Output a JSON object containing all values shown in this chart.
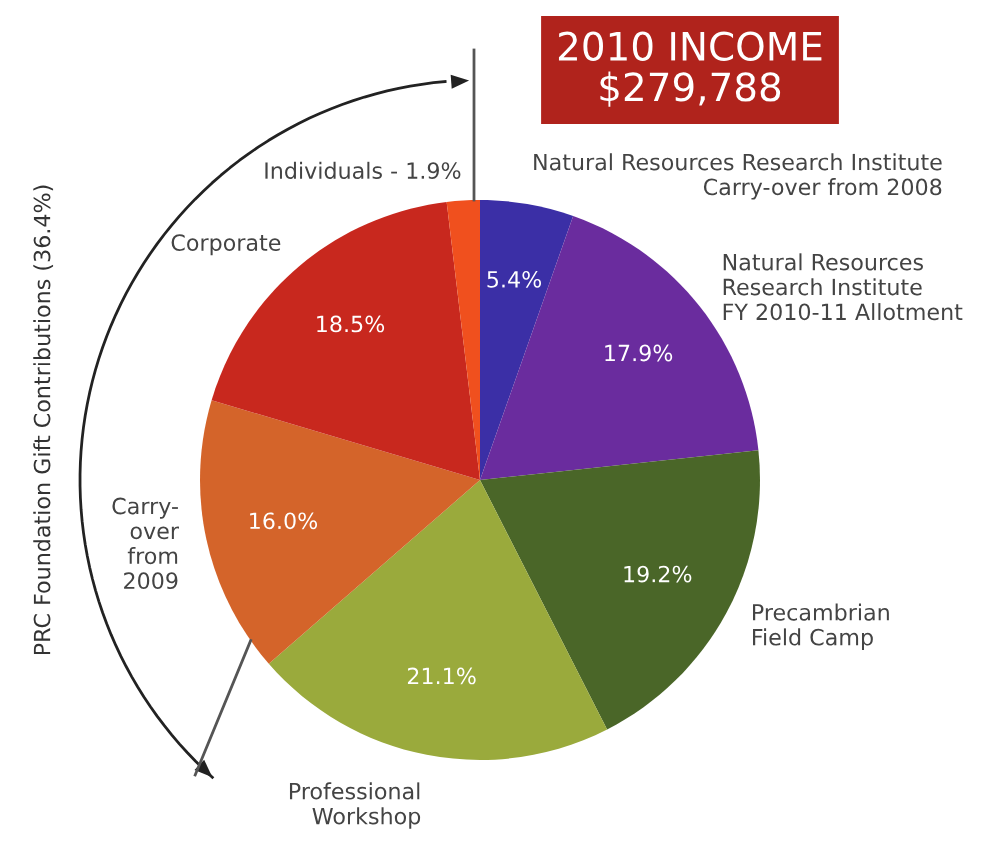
{
  "chart_data": {
    "type": "pie",
    "title": "2010 INCOME\n$279,788",
    "categories": [
      "Natural Resources Research Institute\nCarry-over from 2008",
      "Natural Resources\nResearch Institute\nFY 2010-11 Allotment",
      "Precambrian\nField Camp",
      "Professional\nWorkshop",
      "Carry-\nover\nfrom\n2009",
      "Corporate",
      "Individuals - 1.9%"
    ],
    "values": [
      5.4,
      17.9,
      19.2,
      21.1,
      16.0,
      18.5,
      1.9
    ],
    "colors": [
      "#3b2fa6",
      "#6a2c9e",
      "#4a6628",
      "#9aaa3c",
      "#d4642a",
      "#c8281e",
      "#f0501e"
    ],
    "value_labels": [
      "5.4%",
      "17.9%",
      "19.2%",
      "21.1%",
      "16.0%",
      "18.5%",
      null
    ],
    "annotations": [
      "PRC Foundation Gift Contributions (36.4%)"
    ]
  }
}
